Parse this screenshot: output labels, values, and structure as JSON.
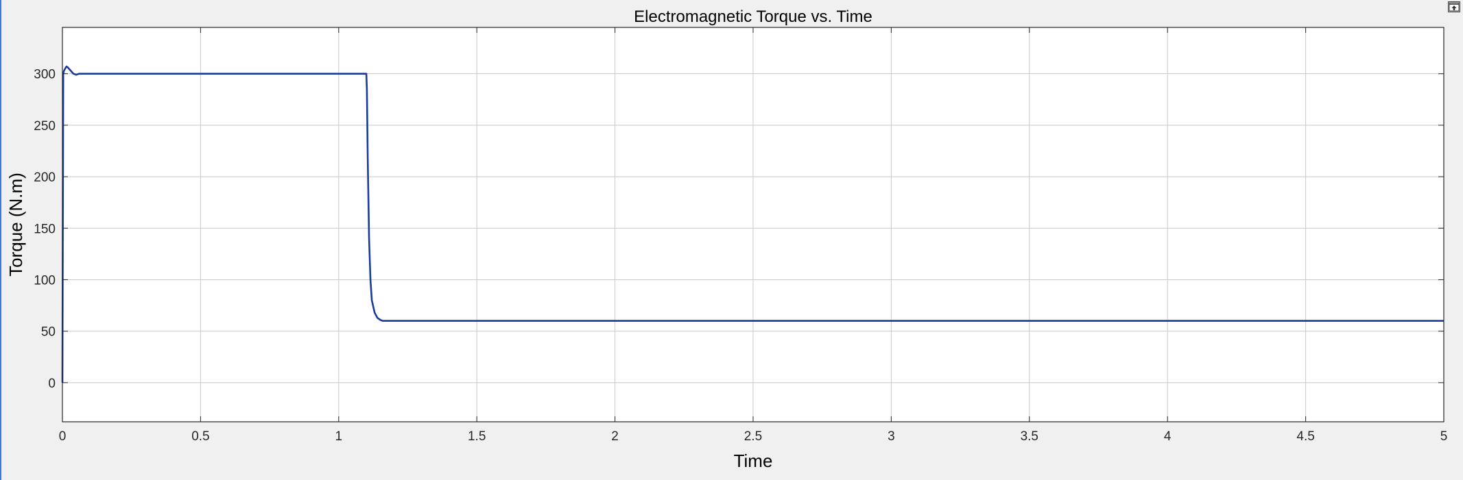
{
  "window": {
    "undock_icon": "undock-icon"
  },
  "chart_data": {
    "type": "line",
    "title": "Electromagnetic Torque vs. Time",
    "xlabel": "Time",
    "ylabel": "Torque (N.m)",
    "xlim": [
      0,
      5
    ],
    "ylim": [
      -38,
      345
    ],
    "xticks": [
      0,
      0.5,
      1,
      1.5,
      2,
      2.5,
      3,
      3.5,
      4,
      4.5,
      5
    ],
    "xtick_labels": [
      "0",
      "0.5",
      "1",
      "1.5",
      "2",
      "2.5",
      "3",
      "3.5",
      "4",
      "4.5",
      "5"
    ],
    "yticks": [
      0,
      50,
      100,
      150,
      200,
      250,
      300
    ],
    "ytick_labels": [
      "0",
      "50",
      "100",
      "150",
      "200",
      "250",
      "300"
    ],
    "grid": true,
    "colors": {
      "line": "#1a3a9c",
      "grid": "#c8c8c8",
      "axes_bg": "#ffffff",
      "figure_bg": "#f0f0f0"
    },
    "series": [
      {
        "x": [
          0,
          0.003,
          0.006,
          0.01,
          0.015,
          0.02,
          0.03,
          0.04,
          0.05,
          0.06,
          0.08,
          0.1,
          0.5,
          1.0,
          1.1,
          1.102,
          1.105,
          1.11,
          1.115,
          1.12,
          1.13,
          1.14,
          1.15,
          1.16,
          1.18,
          1.2,
          1.5,
          2,
          2.5,
          3,
          3.5,
          4,
          4.5,
          5
        ],
        "y": [
          0,
          300,
          303,
          305,
          307,
          306,
          303,
          300,
          299,
          300,
          300,
          300,
          300,
          300,
          300,
          285,
          220,
          140,
          100,
          80,
          68,
          63,
          61,
          60,
          60,
          60,
          60,
          60,
          60,
          60,
          60,
          60,
          60,
          60
        ]
      }
    ]
  }
}
